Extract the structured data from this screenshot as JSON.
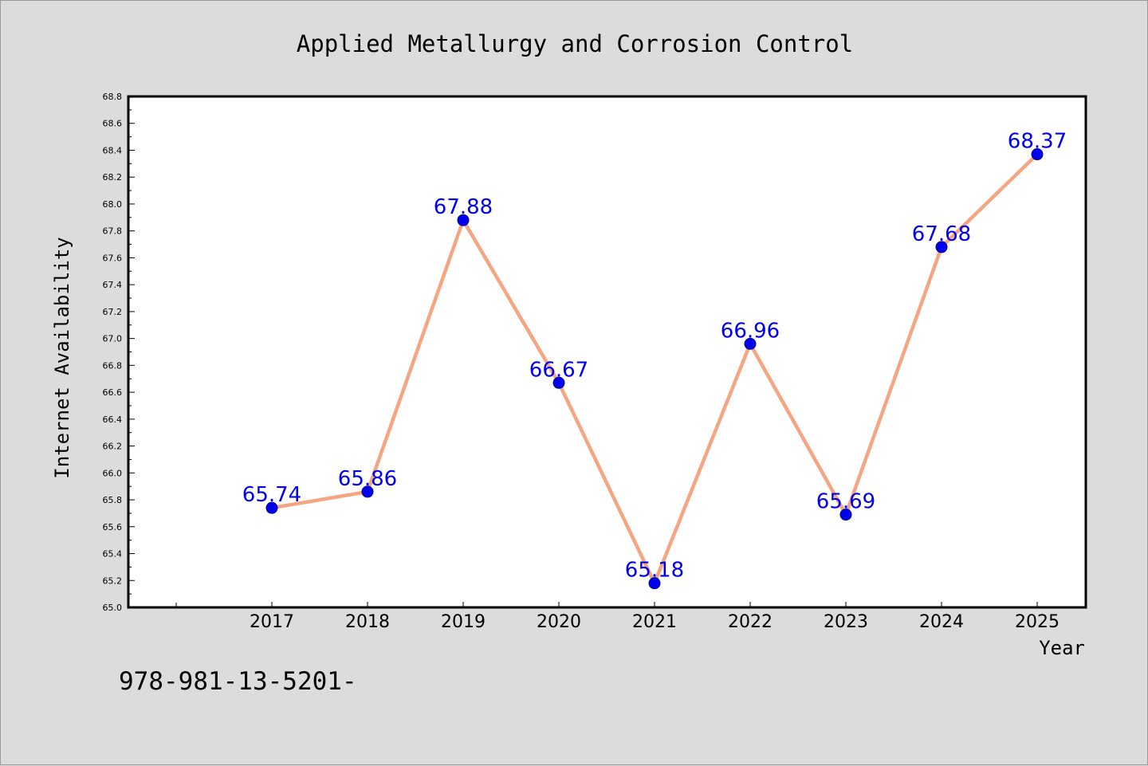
{
  "chart_data": {
    "type": "line",
    "title": "Applied Metallurgy and Corrosion Control",
    "xlabel": "Year",
    "ylabel": "Internet Availability",
    "categories": [
      "2017",
      "2018",
      "2019",
      "2020",
      "2021",
      "2022",
      "2023",
      "2024",
      "2025"
    ],
    "series": [
      {
        "values": [
          65.74,
          65.86,
          67.88,
          66.67,
          65.18,
          66.96,
          65.69,
          67.68,
          68.37
        ],
        "line_color": "#f4a582",
        "marker_color": "#0000ee",
        "label_color": "#0000ee"
      }
    ],
    "data_labels": [
      "65.74",
      "65.86",
      "67.88",
      "66.67",
      "65.18",
      "66.96",
      "65.69",
      "67.68",
      "68.37"
    ],
    "ylim": [
      65.0,
      68.8
    ],
    "y_ticks": [
      "65.0",
      "65.2",
      "65.4",
      "65.6",
      "65.8",
      "66.0",
      "66.2",
      "66.4",
      "66.6",
      "66.8",
      "67.0",
      "67.2",
      "67.4",
      "67.6",
      "67.8",
      "68.0",
      "68.2",
      "68.4",
      "68.6",
      "68.8"
    ],
    "grid": false,
    "legend": "none"
  },
  "footer_text": "978-981-13-5201-"
}
